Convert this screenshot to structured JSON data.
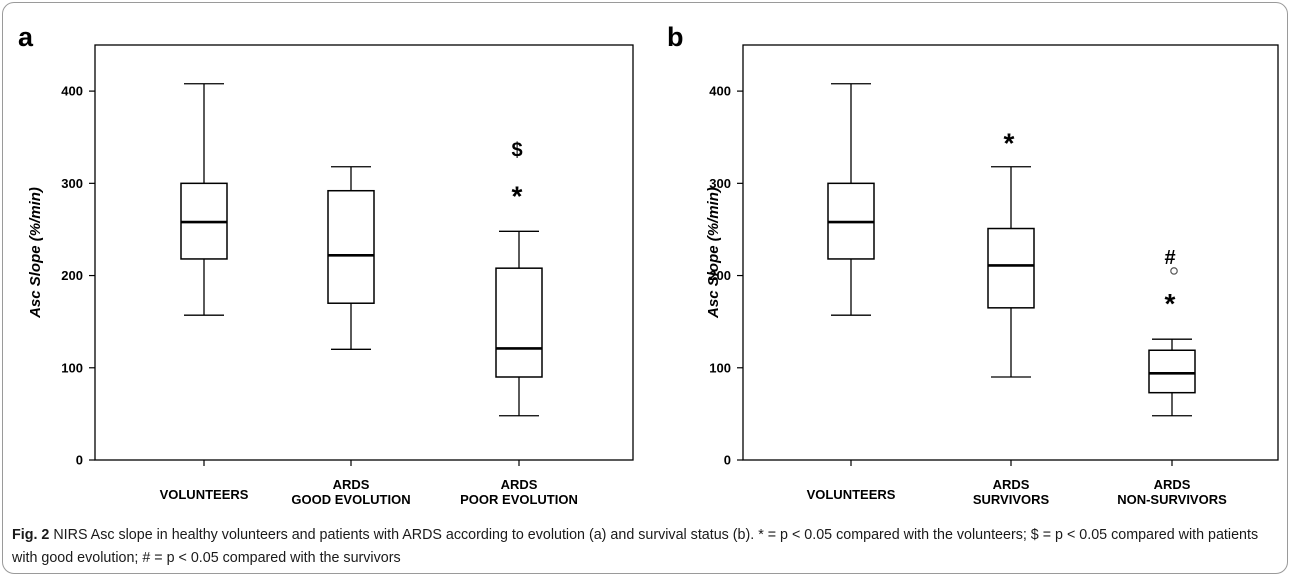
{
  "figure": {
    "caption_label": "Fig. 2",
    "caption_text": "NIRS Asc slope in healthy volunteers and patients with ARDS according to evolution (a) and survival status (b). * = p < 0.05 compared with the volunteers; $ = p < 0.05 compared with patients with good evolution; # = p < 0.05 compared with the survivors"
  },
  "chart_data": [
    {
      "type": "boxplot",
      "panel": "a",
      "ylabel": "Asc Slope (%/min)",
      "ylim": [
        0,
        450
      ],
      "yticks": [
        0,
        100,
        200,
        300,
        400
      ],
      "categories": [
        {
          "lines": [
            "VOLUNTEERS"
          ],
          "whisker_low": 157,
          "q1": 218,
          "median": 258,
          "q3": 300,
          "whisker_high": 408,
          "outliers": [],
          "marks": []
        },
        {
          "lines": [
            "ARDS",
            "GOOD EVOLUTION"
          ],
          "whisker_low": 120,
          "q1": 170,
          "median": 222,
          "q3": 292,
          "whisker_high": 318,
          "outliers": [],
          "marks": []
        },
        {
          "lines": [
            "ARDS",
            "POOR EVOLUTION"
          ],
          "whisker_low": 48,
          "q1": 90,
          "median": 121,
          "q3": 208,
          "whisker_high": 248,
          "outliers": [],
          "marks": [
            "$",
            "*"
          ]
        }
      ]
    },
    {
      "type": "boxplot",
      "panel": "b",
      "ylabel": "Asc Slope (%/min)",
      "ylim": [
        0,
        450
      ],
      "yticks": [
        0,
        100,
        200,
        300,
        400
      ],
      "categories": [
        {
          "lines": [
            "VOLUNTEERS"
          ],
          "whisker_low": 157,
          "q1": 218,
          "median": 258,
          "q3": 300,
          "whisker_high": 408,
          "outliers": [],
          "marks": []
        },
        {
          "lines": [
            "ARDS",
            "SURVIVORS"
          ],
          "whisker_low": 90,
          "q1": 165,
          "median": 211,
          "q3": 251,
          "whisker_high": 318,
          "outliers": [],
          "marks": [
            "*"
          ]
        },
        {
          "lines": [
            "ARDS",
            "NON-SURVIVORS"
          ],
          "whisker_low": 48,
          "q1": 73,
          "median": 94,
          "q3": 119,
          "whisker_high": 131,
          "outliers": [
            205
          ],
          "marks": [
            "#",
            "*"
          ]
        }
      ]
    }
  ]
}
